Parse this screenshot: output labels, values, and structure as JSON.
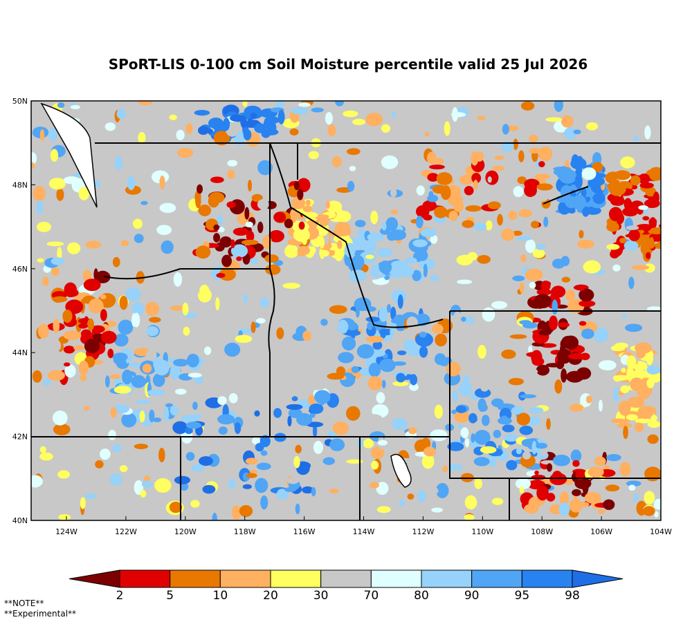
{
  "title": "SPoRT-LIS 0-100 cm Soil Moisture percentile valid 25 Jul 2026",
  "map": {
    "lat_labels": [
      "50N",
      "48N",
      "46N",
      "44N",
      "42N",
      "40N"
    ],
    "lon_labels": [
      "124W",
      "122W",
      "120W",
      "118W",
      "116W",
      "114W",
      "112W",
      "110W",
      "108W",
      "106W",
      "104W"
    ]
  },
  "colorbar": {
    "labels": [
      2,
      5,
      10,
      20,
      30,
      70,
      80,
      90,
      95,
      98
    ],
    "colors": [
      "#7d0000",
      "#e00000",
      "#e87800",
      "#ffb060",
      "#ffff60",
      "#c8c8c8",
      "#e0ffff",
      "#96d2fa",
      "#50a5f5",
      "#2882f0",
      "#1e6ee6"
    ]
  },
  "notes": [
    "**NOTE**",
    "**Experimental**"
  ]
}
